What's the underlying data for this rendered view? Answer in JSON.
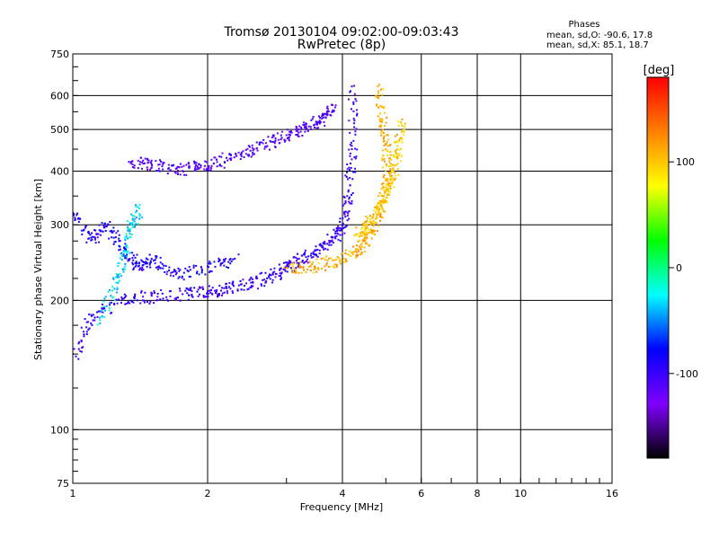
{
  "title": "Tromsø 20130104 09:02:00-09:03:43",
  "subtitle": "RwPretec (8p)",
  "stats": {
    "heading": "Phases",
    "line_o": "mean, sd,O: -90.6, 17.8",
    "line_x": "mean, sd,X:  85.1, 18.7"
  },
  "chart_data": {
    "type": "scatter",
    "xlabel": "Frequency [MHz]",
    "ylabel": "Stationary phase Virtual Height [km]",
    "x_scale": "log",
    "y_scale": "log",
    "xlim": [
      1,
      16
    ],
    "ylim": [
      75,
      750
    ],
    "x_ticks": [
      1,
      2,
      4,
      6,
      8,
      10,
      16
    ],
    "x_tick_labels": [
      "1",
      "2",
      "4",
      "6",
      "8",
      "10",
      "16"
    ],
    "y_ticks": [
      75,
      100,
      200,
      300,
      400,
      500,
      600,
      750
    ],
    "y_tick_labels": [
      "75",
      "100",
      "200",
      "300",
      "400",
      "500",
      "600",
      "750"
    ],
    "grid": true,
    "colorbar": {
      "label": "[deg]",
      "range": [
        -180,
        180
      ],
      "ticks": [
        100,
        0,
        -100
      ],
      "tick_labels": [
        "100",
        "0",
        "-100"
      ],
      "colors": [
        "#000000",
        "#8000ff",
        "#0000ff",
        "#00ffff",
        "#00ff00",
        "#ffff00",
        "#ff8000",
        "#ff0000"
      ]
    },
    "series": [
      {
        "x": [
          1.0,
          1.1,
          1.3,
          1.5,
          1.8,
          2.0,
          2.2,
          2.5,
          2.8,
          3.0,
          3.2,
          3.5,
          3.8,
          4.0,
          4.1,
          4.2,
          4.2
        ],
        "y": [
          150,
          185,
          202,
          205,
          208,
          210,
          214,
          220,
          230,
          240,
          250,
          262,
          280,
          300,
          350,
          450,
          630
        ],
        "phase": -100
      },
      {
        "x": [
          1.35,
          1.5,
          1.7,
          1.9,
          2.1,
          2.4,
          2.7,
          3.0,
          3.3,
          3.6,
          3.8
        ],
        "y": [
          420,
          415,
          405,
          410,
          420,
          445,
          465,
          485,
          505,
          530,
          570
        ],
        "phase": -110
      },
      {
        "x": [
          1.0,
          1.1,
          1.2,
          1.3,
          1.4,
          1.5,
          1.7,
          2.0,
          2.3
        ],
        "y": [
          320,
          280,
          300,
          260,
          240,
          250,
          230,
          240,
          250
        ],
        "phase": -90
      },
      {
        "x": [
          1.15,
          1.25,
          1.3,
          1.35,
          1.4
        ],
        "y": [
          180,
          220,
          260,
          300,
          330
        ],
        "phase": -30
      },
      {
        "x": [
          3.0,
          3.4,
          3.8,
          4.2,
          4.5,
          4.7,
          4.9,
          5.0,
          5.0,
          4.9,
          4.8
        ],
        "y": [
          238,
          240,
          248,
          258,
          275,
          300,
          340,
          380,
          450,
          520,
          630
        ],
        "phase": 110
      },
      {
        "x": [
          4.3,
          4.5,
          4.8,
          5.0,
          5.2,
          5.3,
          5.4
        ],
        "y": [
          285,
          300,
          330,
          360,
          400,
          450,
          520
        ],
        "phase": 100
      }
    ]
  }
}
